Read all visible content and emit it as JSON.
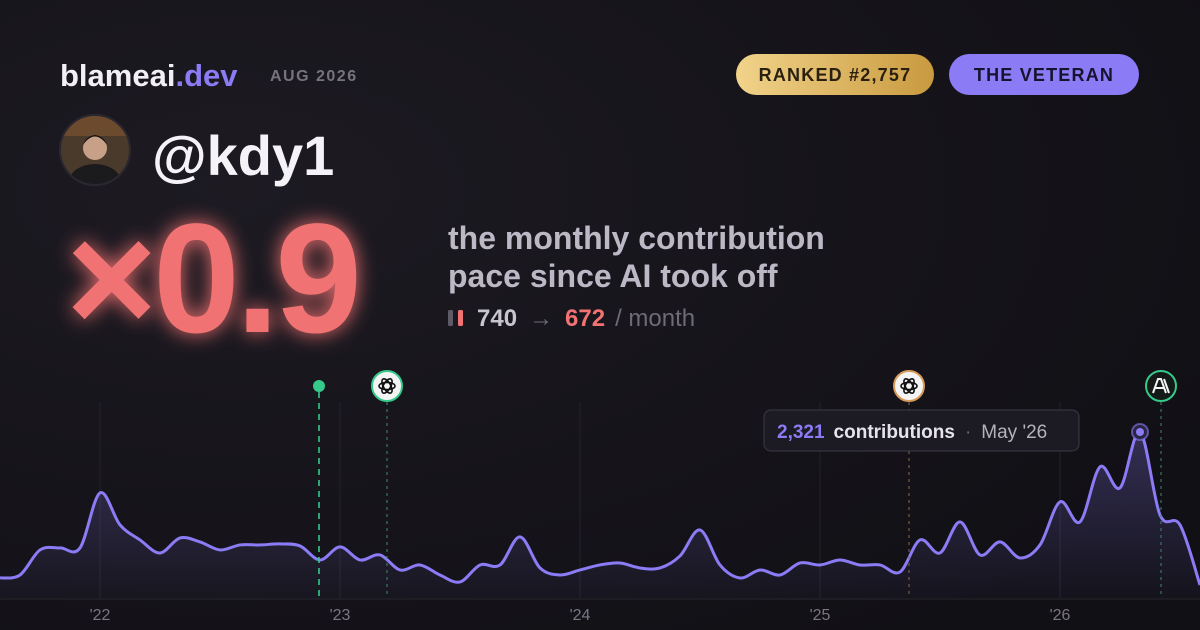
{
  "header": {
    "brand": "blameai",
    "brand_suffix": ".dev",
    "period": "AUG 2026",
    "rank_badge": "RANKED #2,757",
    "title_badge": "THE VETERAN"
  },
  "profile": {
    "handle": "@kdy1"
  },
  "headline": {
    "multiplier": "×0.9",
    "description": [
      "the monthly contribution",
      "pace since AI took off"
    ],
    "before": "740",
    "arrow": "→",
    "after": "672",
    "unit": "/ month"
  },
  "tooltip": {
    "value": "2,321",
    "label": "contributions",
    "separator": "·",
    "date": "May '26"
  },
  "chart_data": {
    "type": "line",
    "categories": [
      null,
      null,
      null,
      null,
      null,
      "'22",
      null,
      null,
      null,
      null,
      null,
      null,
      null,
      null,
      null,
      null,
      null,
      "'23",
      null,
      null,
      null,
      null,
      null,
      null,
      null,
      null,
      null,
      null,
      null,
      "'24",
      null,
      null,
      null,
      null,
      null,
      null,
      null,
      null,
      null,
      null,
      null,
      "'25",
      null,
      null,
      null,
      null,
      null,
      null,
      null,
      null,
      null,
      null,
      null,
      "'26",
      null,
      null,
      null,
      null,
      null,
      null,
      null
    ],
    "series": [
      {
        "color": "#8b7cf6",
        "values": [
          280,
          322,
          672,
          700,
          700,
          1470,
          1022,
          812,
          630,
          840,
          784,
          672,
          742,
          742,
          756,
          728,
          532,
          714,
          532,
          602,
          392,
          462,
          322,
          224,
          462,
          462,
          854,
          420,
          322,
          392,
          462,
          490,
          420,
          420,
          588,
          952,
          462,
          280,
          392,
          322,
          490,
          462,
          532,
          462,
          462,
          364,
          812,
          630,
          1064,
          602,
          784,
          560,
          742,
          1344,
          1064,
          1834,
          1540,
          2321,
          1162,
          1022,
          182
        ]
      }
    ]
  }
}
